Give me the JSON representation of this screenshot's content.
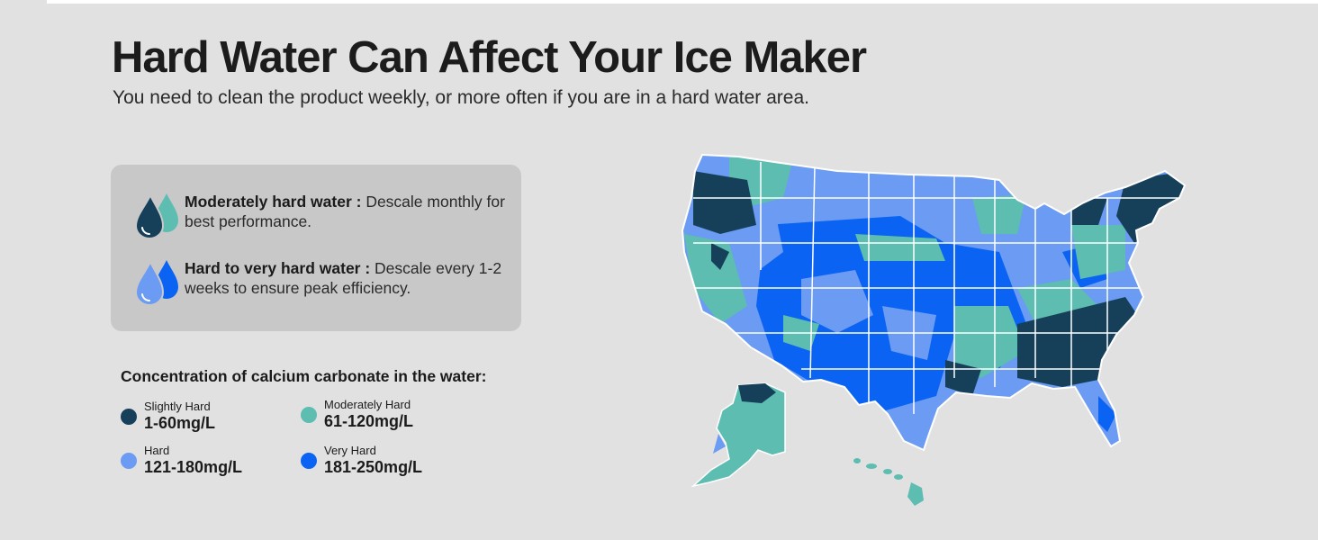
{
  "header": {
    "title": "Hard Water Can Affect Your Ice Maker",
    "subtitle": "You need to clean the product weekly, or more often if you are in a hard water area."
  },
  "info_card": {
    "items": [
      {
        "icon": "water-drops-dark-icon",
        "heading": "Moderately hard water :",
        "text": " Descale monthly for best performance."
      },
      {
        "icon": "water-drops-blue-icon",
        "heading": "Hard to very hard water :",
        "text": " Descale every 1-2 weeks to ensure peak efficiency."
      }
    ]
  },
  "legend": {
    "title": "Concentration of calcium carbonate in the water:",
    "items": [
      {
        "label": "Slightly Hard",
        "range": "1-60mg/L",
        "color": "#16405a"
      },
      {
        "label": "Moderately Hard",
        "range": "61-120mg/L",
        "color": "#5cbdb0"
      },
      {
        "label": "Hard",
        "range": "121-180mg/L",
        "color": "#6b9bf2"
      },
      {
        "label": "Very Hard",
        "range": "181-250mg/L",
        "color": "#0a63f2"
      }
    ]
  },
  "map": {
    "icon": "usa-hardness-map"
  }
}
